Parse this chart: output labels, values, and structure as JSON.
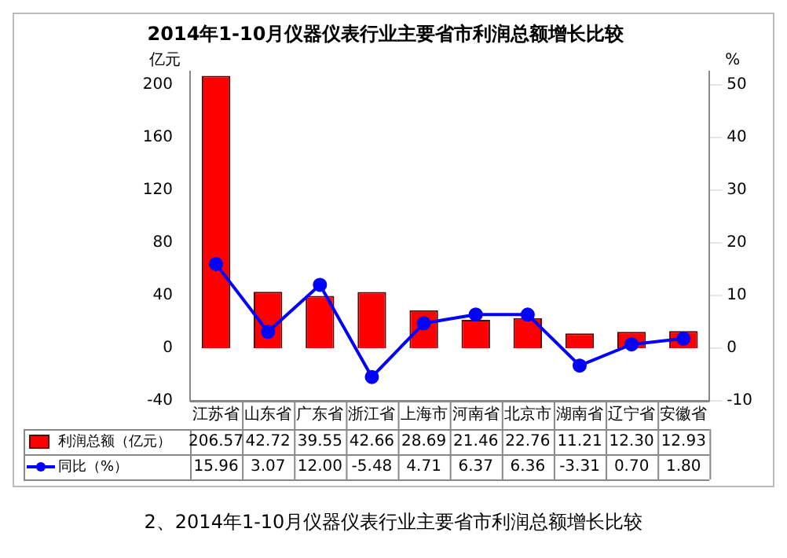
{
  "chart_data": {
    "type": "bar",
    "title": "2014年1-10月仪器仪表行业主要省市利润总额增长比较",
    "ylabel": "亿元",
    "y2label": "%",
    "categories": [
      "江苏省",
      "山东省",
      "广东省",
      "浙江省",
      "上海市",
      "河南省",
      "北京市",
      "湖南省",
      "辽宁省",
      "安徽省"
    ],
    "series": [
      {
        "name": "利润总额（亿元）",
        "color": "#ff0000",
        "values": [
          206.57,
          42.72,
          39.55,
          42.66,
          28.69,
          21.46,
          22.76,
          11.21,
          12.3,
          12.93
        ],
        "value_labels": [
          "206.57",
          "42.72",
          "39.55",
          "42.66",
          "28.69",
          "21.46",
          "22.76",
          "11.21",
          "12.30",
          "12.93"
        ]
      },
      {
        "name": "同比（%）",
        "type": "line",
        "axis": "y2",
        "color": "#0000ff",
        "values": [
          15.96,
          3.07,
          12.0,
          -5.48,
          4.71,
          6.37,
          6.36,
          -3.31,
          0.7,
          1.8
        ],
        "value_labels": [
          "15.96",
          "3.07",
          "12.00",
          "-5.48",
          "4.71",
          "6.37",
          "6.36",
          "-3.31",
          "0.70",
          "1.80"
        ]
      }
    ],
    "ylim": [
      -40,
      210
    ],
    "yticks": [
      -40,
      0,
      40,
      80,
      120,
      160,
      200
    ],
    "y2lim": [
      -10,
      52.5
    ],
    "y2ticks": [
      -10,
      0,
      10,
      20,
      30,
      40,
      50
    ],
    "marker": "circle",
    "legend": "bottom",
    "annotations": [
      "2、2014年1-10月仪器仪表行业主要省市利润总额增长比较"
    ]
  }
}
